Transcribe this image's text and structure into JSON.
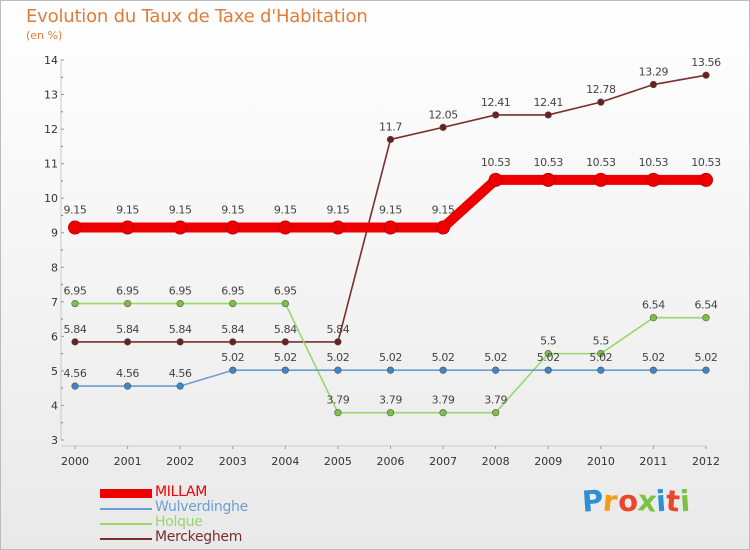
{
  "header": {
    "title": "Evolution du Taux de Taxe d'Habitation",
    "unit": "(en %)"
  },
  "logo": {
    "text": "Proxiti",
    "letter_colors": [
      "#2f8fd6",
      "#f29c1c",
      "#e9462c",
      "#7cc242",
      "#2f8fd6",
      "#e9462c",
      "#7cc242"
    ]
  },
  "chart_data": {
    "type": "line",
    "title": "Evolution du Taux de Taxe d'Habitation",
    "ylabel": "(en %)",
    "xlabel": "",
    "x": [
      "2000",
      "2001",
      "2002",
      "2003",
      "2004",
      "2005",
      "2006",
      "2007",
      "2008",
      "2009",
      "2010",
      "2011",
      "2012"
    ],
    "ylim": [
      3,
      14
    ],
    "yticks": [
      3,
      4,
      5,
      6,
      7,
      8,
      9,
      10,
      11,
      12,
      13,
      14
    ],
    "grid": false,
    "legend_position": "bottom-left",
    "series": [
      {
        "name": "MILLAM",
        "color": "#ee0000",
        "emphasis": true,
        "values": [
          9.15,
          9.15,
          9.15,
          9.15,
          9.15,
          9.15,
          9.15,
          9.15,
          10.53,
          10.53,
          10.53,
          10.53,
          10.53
        ],
        "labels": [
          "9.15",
          "9.15",
          "9.15",
          "9.15",
          "9.15",
          "9.15",
          "9.15",
          "9.15",
          "10.53",
          "10.53",
          "10.53",
          "10.53",
          "10.53"
        ]
      },
      {
        "name": "Wulverdinghe",
        "color": "#6a9fd0",
        "marker_color": "#3f86c9",
        "values": [
          4.56,
          4.56,
          4.56,
          5.02,
          5.02,
          5.02,
          5.02,
          5.02,
          5.02,
          5.02,
          5.02,
          5.02,
          5.02
        ],
        "labels": [
          "4.56",
          "4.56",
          "4.56",
          "5.02",
          "5.02",
          "5.02",
          "5.02",
          "5.02",
          "5.02",
          "5.02",
          "5.02",
          "5.02",
          "5.02"
        ]
      },
      {
        "name": "Holque",
        "color": "#9ad66a",
        "marker_color": "#7cc242",
        "values": [
          6.95,
          6.95,
          6.95,
          6.95,
          6.95,
          3.79,
          3.79,
          3.79,
          3.79,
          5.5,
          5.5,
          6.54,
          6.54
        ],
        "labels": [
          "6.95",
          "6.95",
          "6.95",
          "6.95",
          "6.95",
          "3.79",
          "3.79",
          "3.79",
          "3.79",
          "5.5",
          "5.5",
          "6.54",
          "6.54"
        ]
      },
      {
        "name": "Merckeghem",
        "color": "#7a2e2e",
        "marker_color": "#6b1f1f",
        "values": [
          5.84,
          5.84,
          5.84,
          5.84,
          5.84,
          5.84,
          11.7,
          12.05,
          12.41,
          12.41,
          12.78,
          13.29,
          13.56
        ],
        "labels": [
          "5.84",
          "5.84",
          "5.84",
          "5.84",
          "5.84",
          "5.84",
          "11.7",
          "12.05",
          "12.41",
          "12.41",
          "12.78",
          "13.29",
          "13.56"
        ]
      }
    ]
  }
}
